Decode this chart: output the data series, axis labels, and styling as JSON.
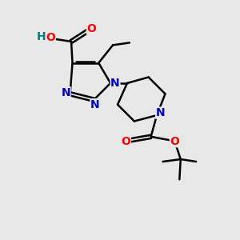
{
  "bg_color": "#e8e8e8",
  "atom_colors": {
    "C": "#000000",
    "N": "#0000cc",
    "O": "#ff0000",
    "H": "#008080"
  },
  "bond_color": "#000000",
  "bond_width": 1.8,
  "font_size_atom": 10
}
